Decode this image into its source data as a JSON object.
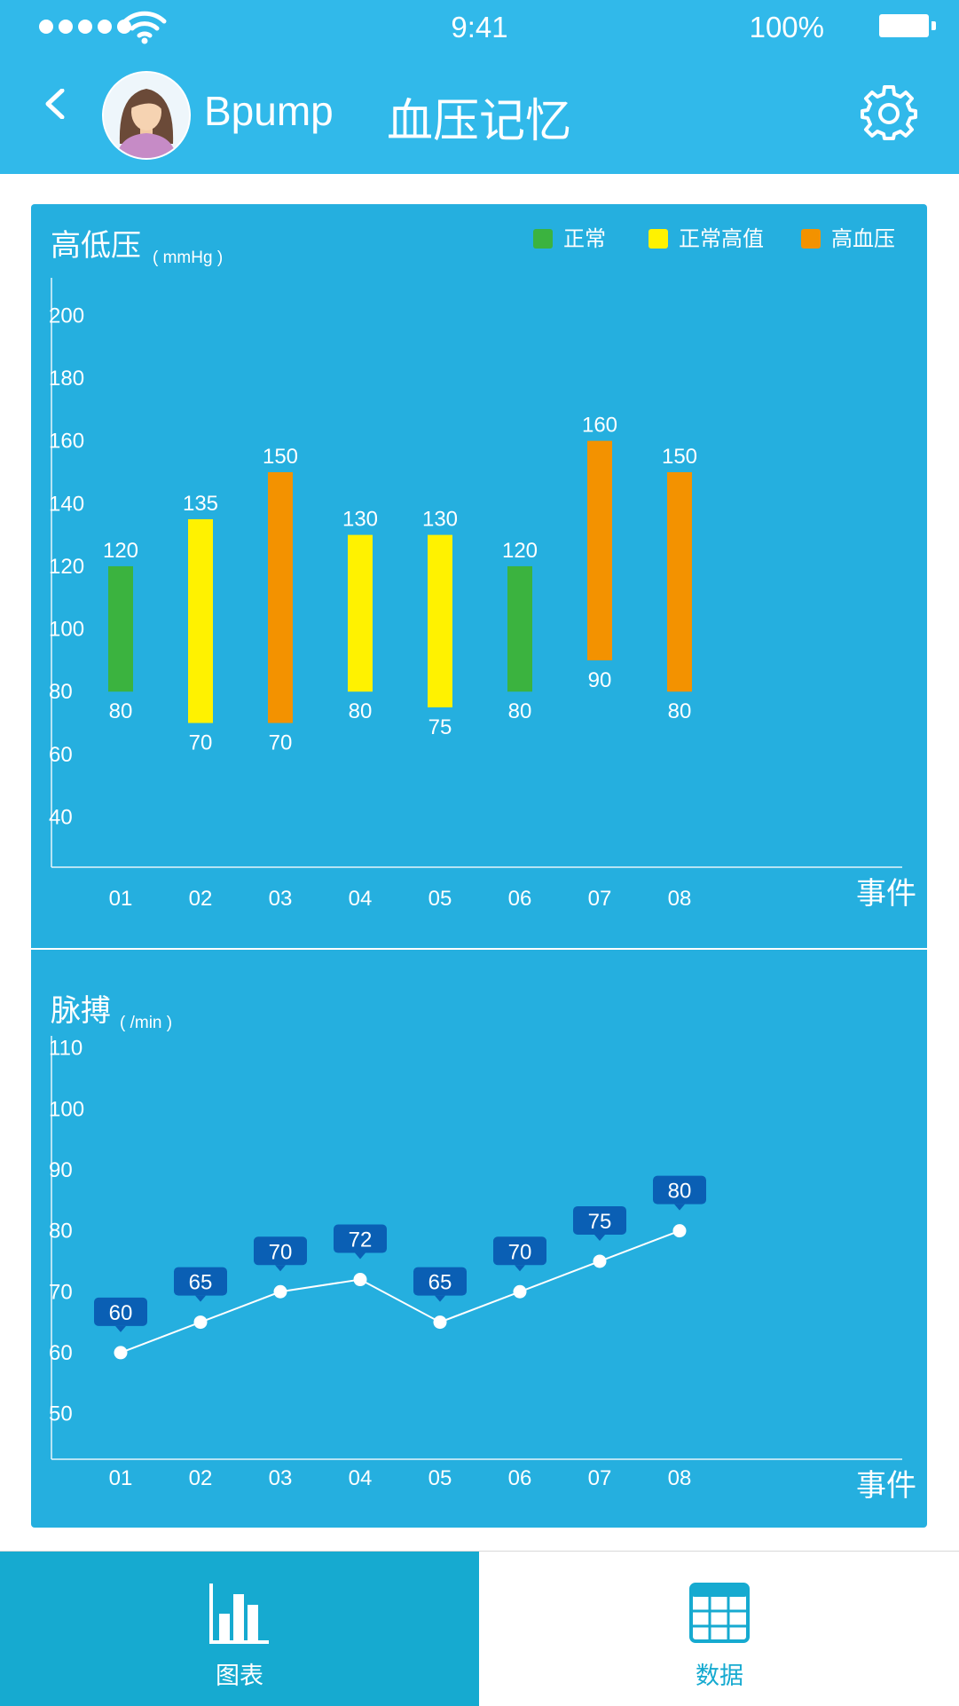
{
  "status_bar": {
    "time": "9:41",
    "battery": "100%"
  },
  "header": {
    "username": "Bpump",
    "title": "血压记忆"
  },
  "legend": [
    {
      "label": "正常",
      "color": "#3bb33f"
    },
    {
      "label": "正常高值",
      "color": "#fff200"
    },
    {
      "label": "高血压",
      "color": "#f39200"
    }
  ],
  "chart_data": [
    {
      "type": "bar",
      "title": "高低压",
      "unit": "( mmHg )",
      "xlabel": "事件",
      "categories": [
        "01",
        "02",
        "03",
        "04",
        "05",
        "06",
        "07",
        "08"
      ],
      "series": [
        {
          "name": "high",
          "values": [
            120,
            135,
            150,
            130,
            130,
            120,
            160,
            150
          ]
        },
        {
          "name": "low",
          "values": [
            80,
            70,
            70,
            80,
            75,
            80,
            90,
            80
          ]
        }
      ],
      "status": [
        "正常",
        "正常高值",
        "高血压",
        "正常高值",
        "正常高值",
        "正常",
        "高血压",
        "高血压"
      ],
      "yticks": [
        200,
        180,
        160,
        140,
        120,
        100,
        80,
        60,
        40
      ],
      "ylim": [
        24,
        212
      ]
    },
    {
      "type": "line",
      "title": "脉搏",
      "unit": "( /min )",
      "xlabel": "事件",
      "categories": [
        "01",
        "02",
        "03",
        "04",
        "05",
        "06",
        "07",
        "08"
      ],
      "series": [
        {
          "values": [
            60,
            65,
            70,
            72,
            65,
            70,
            75,
            80
          ]
        }
      ],
      "yticks": [
        110,
        100,
        90,
        80,
        70,
        60,
        50
      ],
      "ylim": [
        42.5,
        112
      ]
    }
  ],
  "tabs": [
    {
      "label": "图表",
      "icon": "bar-chart-icon",
      "active": true
    },
    {
      "label": "数据",
      "icon": "table-grid-icon",
      "active": false
    }
  ]
}
